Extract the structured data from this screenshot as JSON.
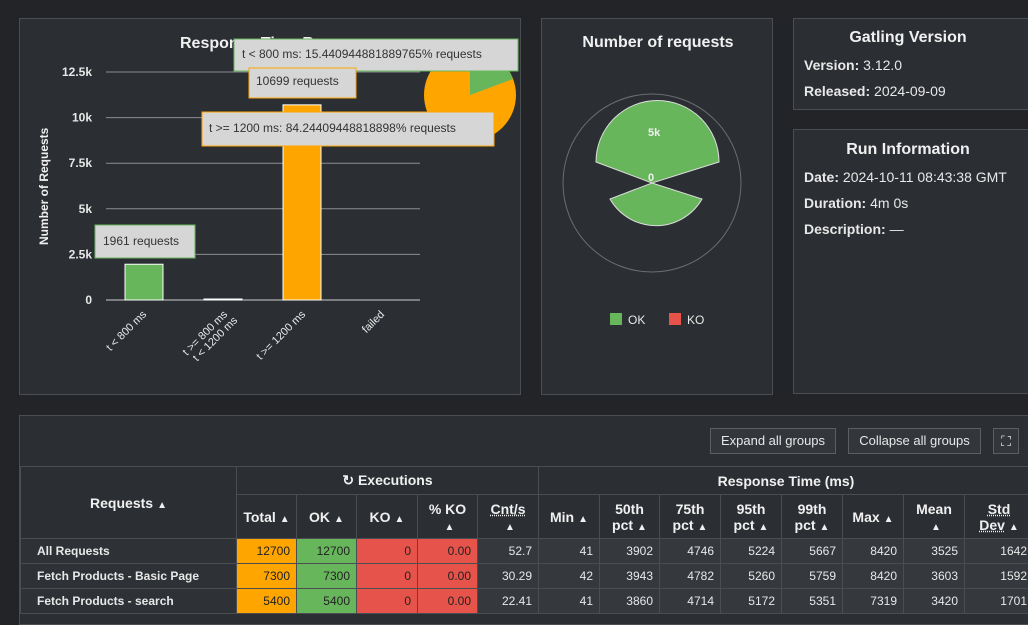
{
  "ranges": {
    "title": "Response Time Ranges",
    "ylabel": "Number of Requests",
    "yticks": [
      "12.5k",
      "10k",
      "7.5k",
      "5k",
      "2.5k",
      "0"
    ],
    "xlabels": [
      "t < 800 ms",
      "t >= 800 ms",
      "t < 1200 ms",
      "t >= 1200 ms",
      "failed"
    ],
    "tooltips": {
      "t1": "t < 800 ms: 15.440944881889765% requests",
      "t2": "10699 requests",
      "t3": "t >= 1200 ms: 84.24409448818898% requests",
      "t4": "1961 requests"
    }
  },
  "chart_data": {
    "type": "bar",
    "categories": [
      "t < 800 ms",
      "t >= 800 ms t < 1200 ms",
      "t >= 1200 ms",
      "failed"
    ],
    "values": [
      1961,
      40,
      10699,
      0
    ],
    "ylabel": "Number of Requests",
    "ylim": [
      0,
      12500
    ],
    "colors": [
      "#68b65c",
      "#ffa500",
      "#ffa500",
      "#e5534b"
    ],
    "pie": [
      15.440944881889765,
      84.24409448818898
    ]
  },
  "requests": {
    "title": "Number of requests",
    "tick_5k": "5k",
    "tick_0": "0",
    "legend_ok": "OK",
    "legend_ko": "KO",
    "colors": {
      "ok": "#68b65c",
      "ko": "#e5534b"
    }
  },
  "version": {
    "title": "Gatling Version",
    "version_label": "Version:",
    "version_value": "3.12.0",
    "released_label": "Released:",
    "released_value": "2024-09-09"
  },
  "run": {
    "title": "Run Information",
    "date_label": "Date:",
    "date_value": "2024-10-11 08:43:38 GMT",
    "duration_label": "Duration:",
    "duration_value": "4m 0s",
    "description_label": "Description:",
    "description_value": "—"
  },
  "stats": {
    "expand_label": "Expand all groups",
    "collapse_label": "Collapse all groups",
    "requests_header": "Requests",
    "executions_header": "Executions",
    "response_header": "Response Time (ms)",
    "cols": {
      "total": "Total",
      "ok": "OK",
      "ko": "KO",
      "pko": "% KO",
      "cnt": "Cnt/s",
      "min": "Min",
      "p50a": "50th",
      "p75a": "75th",
      "p95a": "95th",
      "p99a": "99th",
      "pct": "pct",
      "max": "Max",
      "mean": "Mean",
      "std": "Std",
      "dev": "Dev"
    },
    "rows": [
      {
        "name": "All Requests",
        "total": "12700",
        "ok": "12700",
        "ko": "0",
        "pko": "0.00",
        "cnt": "52.7",
        "min": "41",
        "p50": "3902",
        "p75": "4746",
        "p95": "5224",
        "p99": "5667",
        "max": "8420",
        "mean": "3525",
        "std": "1642"
      },
      {
        "name": "Fetch Products - Basic Page",
        "total": "7300",
        "ok": "7300",
        "ko": "0",
        "pko": "0.00",
        "cnt": "30.29",
        "min": "42",
        "p50": "3943",
        "p75": "4782",
        "p95": "5260",
        "p99": "5759",
        "max": "8420",
        "mean": "3603",
        "std": "1592"
      },
      {
        "name": "Fetch Products - search",
        "total": "5400",
        "ok": "5400",
        "ko": "0",
        "pko": "0.00",
        "cnt": "22.41",
        "min": "41",
        "p50": "3860",
        "p75": "4714",
        "p95": "5172",
        "p99": "5351",
        "max": "7319",
        "mean": "3420",
        "std": "1701"
      }
    ]
  }
}
